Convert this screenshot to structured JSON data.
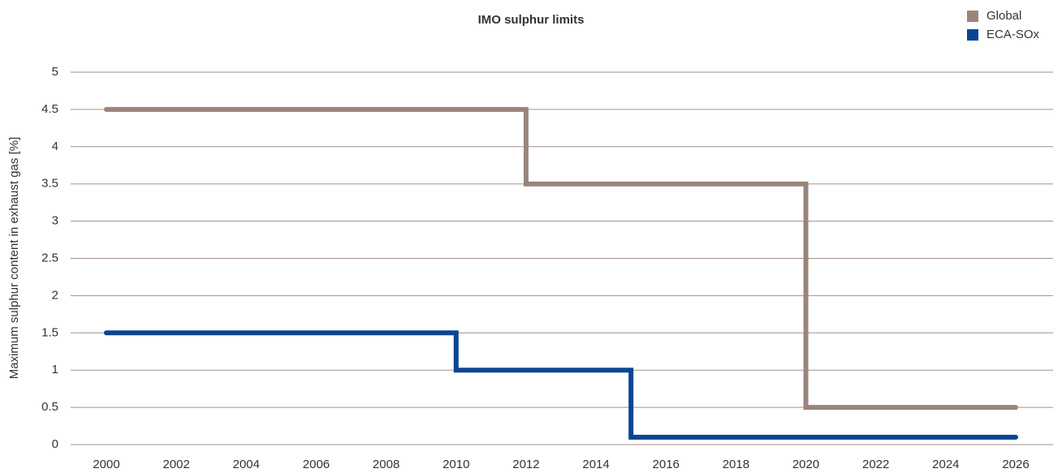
{
  "chart_data": {
    "type": "line",
    "step": "post",
    "title": "IMO sulphur limits",
    "ylabel": "Maximum sulphur content in exhaust gas [%]",
    "x": [
      2000,
      2010,
      2012,
      2015,
      2020,
      2026
    ],
    "series": [
      {
        "name": "Global",
        "color": "#9a857a",
        "values": [
          4.5,
          4.5,
          3.5,
          3.5,
          0.5,
          0.5
        ]
      },
      {
        "name": "ECA-SOx",
        "color": "#0b4592",
        "values": [
          1.5,
          1.0,
          1.0,
          0.1,
          0.1,
          0.1
        ]
      }
    ],
    "xlim": [
      2000,
      2026
    ],
    "xticks": [
      2000,
      2002,
      2004,
      2006,
      2008,
      2010,
      2012,
      2014,
      2016,
      2018,
      2020,
      2022,
      2024,
      2026
    ],
    "ylim": [
      0,
      5
    ],
    "yticks": [
      0,
      0.5,
      1,
      1.5,
      2,
      2.5,
      3,
      3.5,
      4,
      4.5,
      5
    ],
    "grid": true,
    "legend": "top-right"
  }
}
